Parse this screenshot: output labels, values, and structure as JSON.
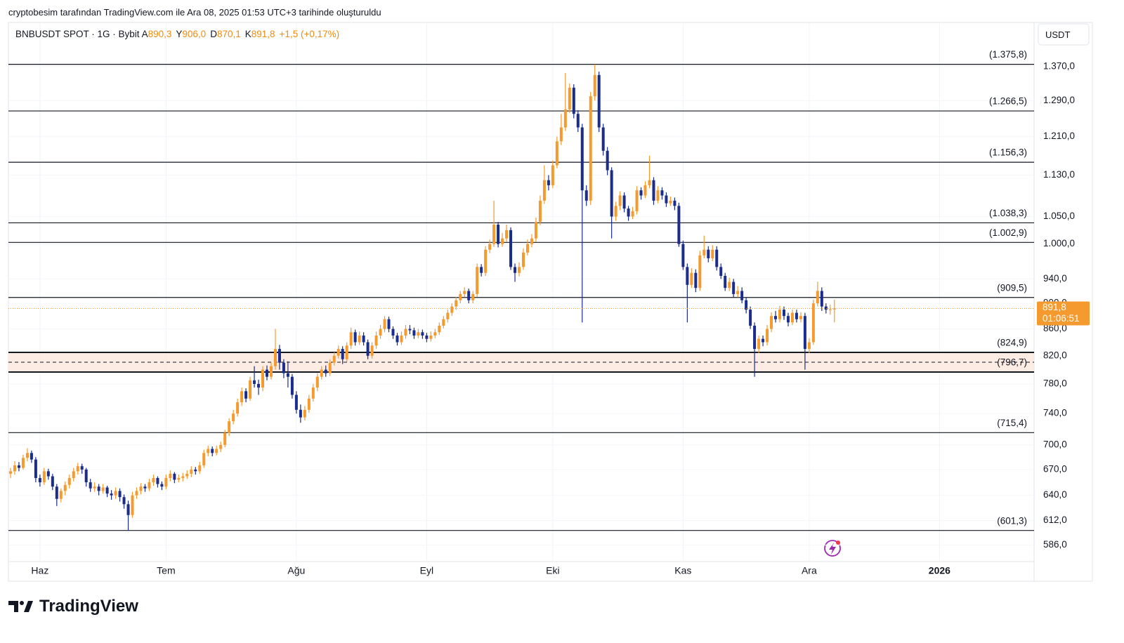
{
  "header": {
    "credit": "cryptobesim tarafından TradingView.com ile Ara 08, 2025 01:53 UTC+3 tarihinde oluşturuldu"
  },
  "footer": {
    "logo": "TradingView"
  },
  "chart_data": {
    "type": "candlestick",
    "title": "BNBUSDT SPOT · 1G · Bybit",
    "ohlc_legend": [
      {
        "label": "A",
        "value": "890,3"
      },
      {
        "label": "Y",
        "value": "906,0"
      },
      {
        "label": "D",
        "value": "870,1"
      },
      {
        "label": "K",
        "value": "891,8"
      }
    ],
    "change": "+1,5 (+0,17%)",
    "currency": "USDT",
    "price_label": "891,8",
    "countdown": "01:06:51",
    "up_color": "#f59a2f",
    "down_color": "#1a2c8c",
    "log_scale": true,
    "grid": true,
    "xlim": [
      -0.5,
      243.5
    ],
    "xticks": [
      {
        "value": 7,
        "label": "Haz"
      },
      {
        "value": 37,
        "label": "Tem"
      },
      {
        "value": 68,
        "label": "Ağu"
      },
      {
        "value": 99,
        "label": "Eyl"
      },
      {
        "value": 129,
        "label": "Eki"
      },
      {
        "value": 160,
        "label": "Kas"
      },
      {
        "value": 190,
        "label": "Ara"
      },
      {
        "value": 221,
        "label": "2026"
      }
    ],
    "ylim": [
      569,
      1482
    ],
    "yticks": [
      {
        "value": 1370,
        "label": "1.370,0"
      },
      {
        "value": 1290,
        "label": "1.290,0"
      },
      {
        "value": 1210,
        "label": "1.210,0"
      },
      {
        "value": 1130,
        "label": "1.130,0"
      },
      {
        "value": 1050,
        "label": "1.050,0"
      },
      {
        "value": 1000,
        "label": "1.000,0"
      },
      {
        "value": 940,
        "label": "940,0"
      },
      {
        "value": 900,
        "label": "900,0"
      },
      {
        "value": 860,
        "label": "860,0"
      },
      {
        "value": 820,
        "label": "820,0"
      },
      {
        "value": 780,
        "label": "780,0"
      },
      {
        "value": 740,
        "label": "740,0"
      },
      {
        "value": 700,
        "label": "700,0"
      },
      {
        "value": 670,
        "label": "670,0"
      },
      {
        "value": 640,
        "label": "640,0"
      },
      {
        "value": 612,
        "label": "612,0"
      },
      {
        "value": 586,
        "label": "586,0"
      }
    ],
    "levels": [
      {
        "value": 1375.8,
        "label": "(1.375,8)"
      },
      {
        "value": 1266.5,
        "label": "(1.266,5)"
      },
      {
        "value": 1156.3,
        "label": "(1.156,3)"
      },
      {
        "value": 1038.3,
        "label": "(1.038,3)"
      },
      {
        "value": 1002.9,
        "label": "(1.002,9)"
      },
      {
        "value": 909.5,
        "label": "(909,5)"
      },
      {
        "value": 824.9,
        "label": "(824,9)"
      },
      {
        "value": 796.7,
        "label": "(796,7)"
      },
      {
        "value": 715.4,
        "label": "(715,4)"
      },
      {
        "value": 601.3,
        "label": "(601,3)"
      }
    ],
    "zone_levels": [
      6,
      7
    ],
    "candles": [
      [
        665,
        672,
        660,
        668
      ],
      [
        668,
        680,
        664,
        675
      ],
      [
        675,
        679,
        668,
        672
      ],
      [
        672,
        688,
        670,
        684
      ],
      [
        684,
        696,
        680,
        690
      ],
      [
        690,
        693,
        678,
        682
      ],
      [
        682,
        685,
        655,
        660
      ],
      [
        660,
        664,
        650,
        655
      ],
      [
        655,
        672,
        652,
        668
      ],
      [
        668,
        671,
        658,
        662
      ],
      [
        662,
        665,
        646,
        650
      ],
      [
        650,
        653,
        628,
        636
      ],
      [
        636,
        648,
        632,
        645
      ],
      [
        645,
        656,
        640,
        652
      ],
      [
        652,
        664,
        648,
        660
      ],
      [
        660,
        672,
        656,
        668
      ],
      [
        668,
        678,
        664,
        674
      ],
      [
        674,
        677,
        665,
        670
      ],
      [
        670,
        672,
        650,
        655
      ],
      [
        655,
        659,
        644,
        648
      ],
      [
        648,
        655,
        644,
        650
      ],
      [
        650,
        653,
        640,
        645
      ],
      [
        645,
        653,
        642,
        649
      ],
      [
        649,
        651,
        638,
        642
      ],
      [
        642,
        646,
        635,
        640
      ],
      [
        640,
        649,
        636,
        645
      ],
      [
        645,
        648,
        633,
        638
      ],
      [
        638,
        641,
        625,
        630
      ],
      [
        630,
        634,
        601.3,
        618
      ],
      [
        618,
        644,
        615,
        640
      ],
      [
        640,
        649,
        636,
        645
      ],
      [
        645,
        654,
        641,
        650
      ],
      [
        650,
        653,
        644,
        648
      ],
      [
        648,
        659,
        645,
        655
      ],
      [
        655,
        664,
        651,
        660
      ],
      [
        660,
        662,
        649,
        653
      ],
      [
        653,
        656,
        646,
        650
      ],
      [
        650,
        664,
        647,
        660
      ],
      [
        660,
        669,
        656,
        665
      ],
      [
        665,
        667,
        654,
        658
      ],
      [
        658,
        664,
        655,
        660
      ],
      [
        660,
        666,
        656,
        662
      ],
      [
        662,
        669,
        659,
        665
      ],
      [
        665,
        674,
        661,
        670
      ],
      [
        670,
        673,
        664,
        668
      ],
      [
        668,
        679,
        665,
        675
      ],
      [
        675,
        694,
        672,
        690
      ],
      [
        690,
        699,
        686,
        695
      ],
      [
        695,
        698,
        686,
        690
      ],
      [
        690,
        699,
        687,
        695
      ],
      [
        695,
        704,
        691,
        700
      ],
      [
        700,
        719,
        697,
        715
      ],
      [
        715,
        734,
        711,
        730
      ],
      [
        730,
        745,
        726,
        740
      ],
      [
        740,
        760,
        736,
        755
      ],
      [
        755,
        775,
        750,
        770
      ],
      [
        770,
        774,
        755,
        760
      ],
      [
        760,
        790,
        757,
        785
      ],
      [
        785,
        805,
        775,
        780
      ],
      [
        780,
        786,
        765,
        775
      ],
      [
        775,
        805,
        770,
        800
      ],
      [
        800,
        806,
        785,
        790
      ],
      [
        790,
        810,
        786,
        805
      ],
      [
        805,
        860,
        800,
        830
      ],
      [
        830,
        836,
        800,
        810
      ],
      [
        810,
        815,
        788,
        795
      ],
      [
        795,
        812,
        775,
        790
      ],
      [
        790,
        794,
        760,
        765
      ],
      [
        765,
        770,
        740,
        745
      ],
      [
        745,
        752,
        728,
        735
      ],
      [
        735,
        750,
        731,
        745
      ],
      [
        745,
        765,
        741,
        760
      ],
      [
        760,
        780,
        756,
        775
      ],
      [
        775,
        795,
        770,
        790
      ],
      [
        790,
        805,
        786,
        800
      ],
      [
        800,
        806,
        790,
        795
      ],
      [
        795,
        815,
        791,
        810
      ],
      [
        810,
        825,
        806,
        820
      ],
      [
        820,
        835,
        816,
        830
      ],
      [
        830,
        834,
        808,
        815
      ],
      [
        815,
        840,
        811,
        835
      ],
      [
        835,
        862,
        830,
        855
      ],
      [
        855,
        859,
        835,
        840
      ],
      [
        840,
        856,
        836,
        850
      ],
      [
        850,
        855,
        835,
        840
      ],
      [
        840,
        844,
        815,
        820
      ],
      [
        820,
        840,
        816,
        835
      ],
      [
        835,
        856,
        830,
        850
      ],
      [
        850,
        866,
        845,
        860
      ],
      [
        860,
        880,
        855,
        875
      ],
      [
        875,
        879,
        855,
        860
      ],
      [
        860,
        864,
        845,
        850
      ],
      [
        850,
        854,
        835,
        840
      ],
      [
        840,
        856,
        836,
        850
      ],
      [
        850,
        866,
        845,
        860
      ],
      [
        860,
        866,
        852,
        858
      ],
      [
        858,
        862,
        845,
        850
      ],
      [
        850,
        860,
        846,
        855
      ],
      [
        855,
        859,
        845,
        850
      ],
      [
        850,
        854,
        840,
        845
      ],
      [
        845,
        856,
        841,
        850
      ],
      [
        850,
        860,
        846,
        855
      ],
      [
        855,
        870,
        851,
        865
      ],
      [
        865,
        880,
        861,
        875
      ],
      [
        875,
        890,
        870,
        885
      ],
      [
        885,
        900,
        880,
        895
      ],
      [
        895,
        910,
        890,
        905
      ],
      [
        905,
        920,
        900,
        915
      ],
      [
        915,
        926,
        910,
        920
      ],
      [
        920,
        924,
        900,
        905
      ],
      [
        905,
        920,
        900,
        915
      ],
      [
        915,
        966,
        910,
        960
      ],
      [
        960,
        965,
        944,
        950
      ],
      [
        950,
        996,
        945,
        990
      ],
      [
        990,
        1008,
        984,
        1000
      ],
      [
        1000,
        1080,
        995,
        1035
      ],
      [
        1035,
        1040,
        994,
        1000
      ],
      [
        1000,
        1020,
        995,
        1010
      ],
      [
        1010,
        1035,
        1004,
        1025
      ],
      [
        1025,
        1030,
        955,
        960
      ],
      [
        960,
        966,
        935,
        950
      ],
      [
        950,
        968,
        944,
        960
      ],
      [
        960,
        992,
        955,
        985
      ],
      [
        985,
        1008,
        980,
        1000
      ],
      [
        1000,
        1018,
        994,
        1010
      ],
      [
        1010,
        1048,
        1004,
        1040
      ],
      [
        1040,
        1090,
        1034,
        1080
      ],
      [
        1080,
        1150,
        1074,
        1120
      ],
      [
        1120,
        1130,
        1100,
        1110
      ],
      [
        1110,
        1160,
        1104,
        1150
      ],
      [
        1150,
        1210,
        1144,
        1200
      ],
      [
        1200,
        1260,
        1192,
        1230
      ],
      [
        1230,
        1355,
        1222,
        1270
      ],
      [
        1270,
        1330,
        1262,
        1320
      ],
      [
        1320,
        1328,
        1250,
        1260
      ],
      [
        1260,
        1268,
        1220,
        1230
      ],
      [
        1230,
        1238,
        870,
        1100
      ],
      [
        1100,
        1110,
        1070,
        1080
      ],
      [
        1080,
        1310,
        1072,
        1300
      ],
      [
        1300,
        1375.8,
        1290,
        1350
      ],
      [
        1350,
        1358,
        1220,
        1230
      ],
      [
        1230,
        1238,
        1170,
        1180
      ],
      [
        1180,
        1188,
        1130,
        1140
      ],
      [
        1140,
        1146,
        1010,
        1050
      ],
      [
        1050,
        1078,
        1042,
        1070
      ],
      [
        1070,
        1098,
        1062,
        1090
      ],
      [
        1090,
        1096,
        1058,
        1065
      ],
      [
        1065,
        1070,
        1042,
        1050
      ],
      [
        1050,
        1068,
        1045,
        1060
      ],
      [
        1060,
        1108,
        1054,
        1100
      ],
      [
        1100,
        1106,
        1082,
        1090
      ],
      [
        1090,
        1118,
        1085,
        1110
      ],
      [
        1110,
        1170,
        1104,
        1120
      ],
      [
        1120,
        1126,
        1072,
        1080
      ],
      [
        1080,
        1108,
        1075,
        1100
      ],
      [
        1100,
        1106,
        1082,
        1090
      ],
      [
        1090,
        1096,
        1068,
        1075
      ],
      [
        1075,
        1088,
        1070,
        1080
      ],
      [
        1080,
        1086,
        1062,
        1070
      ],
      [
        1070,
        1076,
        995,
        1000
      ],
      [
        1000,
        1006,
        955,
        960
      ],
      [
        960,
        966,
        870,
        930
      ],
      [
        930,
        958,
        925,
        950
      ],
      [
        950,
        956,
        918,
        925
      ],
      [
        925,
        988,
        920,
        980
      ],
      [
        980,
        1015,
        975,
        990
      ],
      [
        990,
        996,
        968,
        975
      ],
      [
        975,
        998,
        970,
        990
      ],
      [
        990,
        996,
        954,
        960
      ],
      [
        960,
        966,
        940,
        945
      ],
      [
        945,
        950,
        920,
        925
      ],
      [
        925,
        942,
        920,
        935
      ],
      [
        935,
        940,
        910,
        915
      ],
      [
        915,
        928,
        910,
        920
      ],
      [
        920,
        926,
        900,
        905
      ],
      [
        905,
        910,
        884,
        890
      ],
      [
        890,
        895,
        860,
        865
      ],
      [
        865,
        870,
        790,
        830
      ],
      [
        830,
        850,
        824,
        845
      ],
      [
        845,
        850,
        834,
        840
      ],
      [
        840,
        866,
        835,
        860
      ],
      [
        860,
        886,
        855,
        880
      ],
      [
        880,
        888,
        870,
        875
      ],
      [
        875,
        896,
        870,
        890
      ],
      [
        890,
        895,
        874,
        880
      ],
      [
        880,
        885,
        864,
        870
      ],
      [
        870,
        890,
        866,
        885
      ],
      [
        885,
        890,
        870,
        875
      ],
      [
        875,
        886,
        870,
        880
      ],
      [
        880,
        885,
        800,
        830
      ],
      [
        830,
        846,
        824,
        840
      ],
      [
        840,
        906,
        836,
        900
      ],
      [
        900,
        935,
        895,
        920
      ],
      [
        920,
        926,
        888,
        895
      ],
      [
        895,
        900,
        884,
        890
      ],
      [
        890,
        898,
        882,
        890.3
      ],
      [
        890.3,
        906,
        870.1,
        891.8
      ]
    ]
  }
}
